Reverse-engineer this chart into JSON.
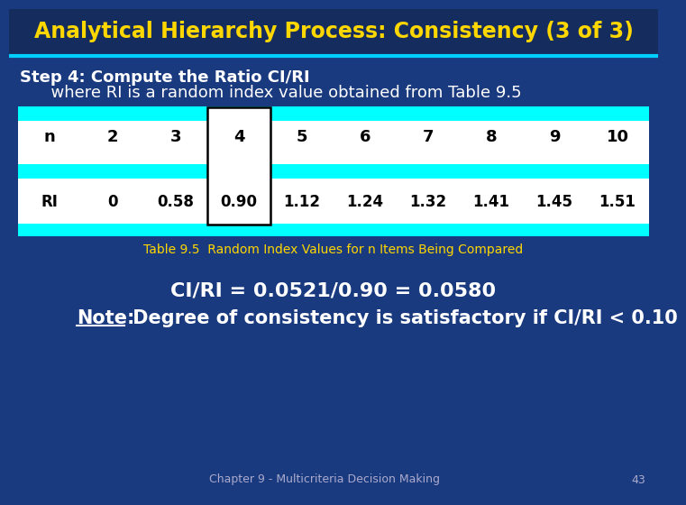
{
  "title": "Analytical Hierarchy Process: Consistency (3 of 3)",
  "title_color": "#FFD700",
  "bg_color": "#1a3a80",
  "title_bg": "#1a3a6b",
  "step_text": "Step 4: Compute the Ratio CI/RI",
  "sub_text": "      where RI is a random index value obtained from Table 9.5",
  "text_color": "#FFFFFF",
  "table_caption": "Table 9.5  Random Index Values for n Items Being Compared",
  "table_caption_color": "#FFD700",
  "n_row": [
    "n",
    "2",
    "3",
    "4",
    "5",
    "6",
    "7",
    "8",
    "9",
    "10"
  ],
  "ri_row": [
    "RI",
    "0",
    "0.58",
    "0.90",
    "1.12",
    "1.24",
    "1.32",
    "1.41",
    "1.45",
    "1.51"
  ],
  "highlight_col": 3,
  "cyan_color": "#00FFFF",
  "formula_text": "CI/RI = 0.0521/0.90 = 0.0580",
  "note_word": "Note:",
  "note_rest": " Degree of consistency is satisfactory if CI/RI < 0.10",
  "footer_text": "Chapter 9 - Multicriteria Decision Making",
  "footer_number": "43",
  "footer_color": "#AAAACC",
  "table_bg": "#FFFFFF"
}
